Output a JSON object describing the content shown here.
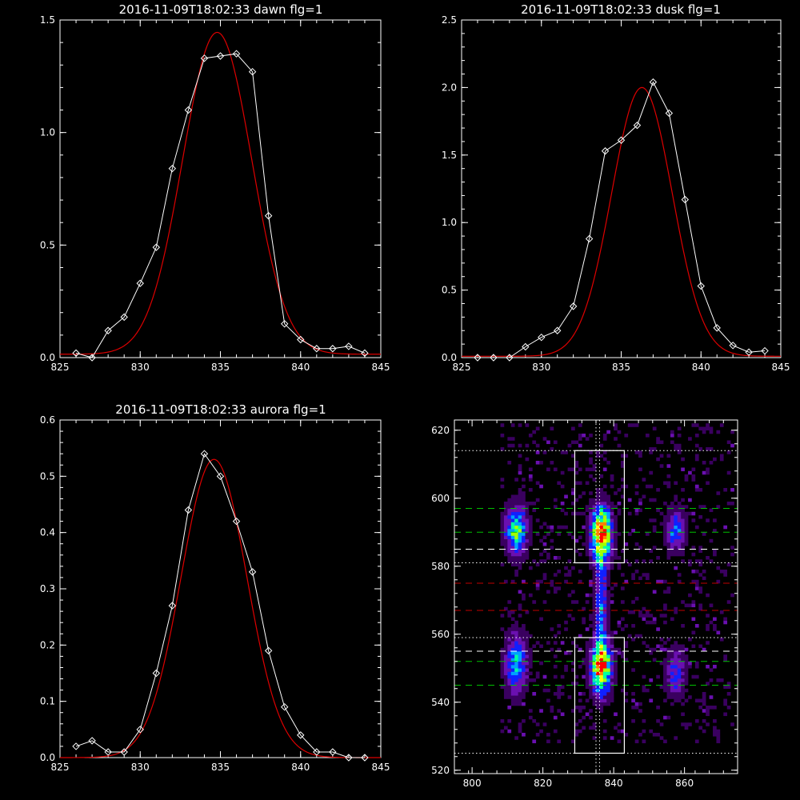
{
  "chart_data": [
    {
      "id": "dawn",
      "type": "line",
      "title": "2016-11-09T18:02:33 dawn flg=1",
      "xlim": [
        825,
        845
      ],
      "ylim": [
        0,
        1.5
      ],
      "xticks": [
        "825",
        "830",
        "835",
        "840",
        "845"
      ],
      "yticks": [
        "0.0",
        "0.5",
        "1.0",
        "1.5"
      ],
      "xtick_values": [
        825,
        830,
        835,
        840,
        845
      ],
      "ytick_values": [
        0,
        0.5,
        1.0,
        1.5
      ],
      "series": [
        {
          "kind": "data",
          "color": "#ffffff",
          "marker": "diamond",
          "x": [
            826,
            827,
            828,
            829,
            830,
            831,
            832,
            833,
            834,
            835,
            836,
            837,
            838,
            839,
            840,
            841,
            842,
            843,
            844
          ],
          "y": [
            0.02,
            0.0,
            0.12,
            0.18,
            0.33,
            0.49,
            0.84,
            1.1,
            1.33,
            1.34,
            1.35,
            1.27,
            0.63,
            0.15,
            0.08,
            0.04,
            0.04,
            0.05,
            0.02
          ]
        },
        {
          "kind": "fit",
          "color": "#dd0000",
          "gauss": {
            "amp": 1.43,
            "center": 834.8,
            "sigma": 2.15,
            "base": 0.015
          }
        }
      ]
    },
    {
      "id": "dusk",
      "type": "line",
      "title": "2016-11-09T18:02:33 dusk flg=1",
      "xlim": [
        825,
        845
      ],
      "ylim": [
        0,
        2.5
      ],
      "xticks": [
        "825",
        "830",
        "835",
        "840",
        "845"
      ],
      "yticks": [
        "0.0",
        "0.5",
        "1.0",
        "1.5",
        "2.0",
        "2.5"
      ],
      "xtick_values": [
        825,
        830,
        835,
        840,
        845
      ],
      "ytick_values": [
        0,
        0.5,
        1.0,
        1.5,
        2.0,
        2.5
      ],
      "series": [
        {
          "kind": "data",
          "color": "#ffffff",
          "marker": "diamond",
          "x": [
            826,
            827,
            828,
            829,
            830,
            831,
            832,
            833,
            834,
            835,
            836,
            837,
            838,
            839,
            840,
            841,
            842,
            843,
            844
          ],
          "y": [
            0.0,
            0.0,
            0.0,
            0.08,
            0.15,
            0.2,
            0.38,
            0.88,
            1.53,
            1.61,
            1.72,
            2.04,
            1.81,
            1.17,
            0.53,
            0.22,
            0.09,
            0.04,
            0.05
          ]
        },
        {
          "kind": "fit",
          "color": "#dd0000",
          "gauss": {
            "amp": 1.99,
            "center": 836.3,
            "sigma": 1.9,
            "base": 0.01
          }
        }
      ]
    },
    {
      "id": "aurora",
      "type": "line",
      "title": "2016-11-09T18:02:33 aurora flg=1",
      "xlim": [
        825,
        845
      ],
      "ylim": [
        0,
        0.6
      ],
      "xticks": [
        "825",
        "830",
        "835",
        "840",
        "845"
      ],
      "yticks": [
        "0.0",
        "0.1",
        "0.2",
        "0.3",
        "0.4",
        "0.5",
        "0.6"
      ],
      "xtick_values": [
        825,
        830,
        835,
        840,
        845
      ],
      "ytick_values": [
        0,
        0.1,
        0.2,
        0.3,
        0.4,
        0.5,
        0.6
      ],
      "series": [
        {
          "kind": "data",
          "color": "#ffffff",
          "marker": "diamond",
          "x": [
            826,
            827,
            828,
            829,
            830,
            831,
            832,
            833,
            834,
            835,
            836,
            837,
            838,
            839,
            840,
            841,
            842,
            843,
            844
          ],
          "y": [
            0.02,
            0.03,
            0.01,
            0.01,
            0.05,
            0.15,
            0.27,
            0.44,
            0.54,
            0.5,
            0.42,
            0.33,
            0.19,
            0.09,
            0.04,
            0.01,
            0.01,
            0.0,
            0.0
          ]
        },
        {
          "kind": "fit",
          "color": "#dd0000",
          "gauss": {
            "amp": 0.53,
            "center": 834.6,
            "sigma": 2.05,
            "base": 0.0
          }
        }
      ]
    },
    {
      "id": "image",
      "type": "heatmap",
      "title": "",
      "xlim": [
        795,
        875
      ],
      "ylim": [
        519,
        623
      ],
      "xticks": [
        "800",
        "820",
        "840",
        "860"
      ],
      "yticks": [
        "520",
        "540",
        "560",
        "580",
        "600",
        "620"
      ],
      "xtick_values": [
        800,
        820,
        840,
        860
      ],
      "ytick_values": [
        520,
        540,
        560,
        580,
        600,
        620
      ],
      "colorscale": [
        "#000000",
        "#3a0060",
        "#6a10b0",
        "#1020ff",
        "#00a0ff",
        "#00ffa0",
        "#a0ff00",
        "#ffff00",
        "#ff8000",
        "#ff0000"
      ],
      "blobs": [
        {
          "x": 812,
          "y": 590,
          "sx": 2.2,
          "sy": 5.0,
          "amp": 0.58
        },
        {
          "x": 812,
          "y": 551,
          "sx": 2.2,
          "sy": 6.0,
          "amp": 0.45
        },
        {
          "x": 836,
          "y": 589,
          "sx": 2.0,
          "sy": 5.5,
          "amp": 0.95
        },
        {
          "x": 836,
          "y": 550,
          "sx": 2.0,
          "sy": 5.5,
          "amp": 0.9
        },
        {
          "x": 836,
          "y": 569,
          "sx": 1.1,
          "sy": 9.0,
          "amp": 0.4
        },
        {
          "x": 857,
          "y": 590,
          "sx": 2.0,
          "sy": 4.0,
          "amp": 0.4
        },
        {
          "x": 857,
          "y": 548,
          "sx": 2.0,
          "sy": 5.0,
          "amp": 0.32
        }
      ],
      "boxes": [
        {
          "x0": 829,
          "x1": 843,
          "y0": 581,
          "y1": 614
        },
        {
          "x0": 829,
          "x1": 843,
          "y0": 525,
          "y1": 559
        }
      ],
      "vlines": [
        {
          "x": 835,
          "color": "#ffffff",
          "style": "dotted"
        },
        {
          "x": 836,
          "color": "#ffffff",
          "style": "dotted"
        }
      ],
      "hlines": [
        {
          "y": 614,
          "color": "#ffffff",
          "style": "dotted"
        },
        {
          "y": 597,
          "color": "#00c000",
          "style": "dashed"
        },
        {
          "y": 590,
          "color": "#00c000",
          "style": "dashed"
        },
        {
          "y": 585,
          "color": "#ffffff",
          "style": "dashed"
        },
        {
          "y": 581,
          "color": "#ffffff",
          "style": "dotted"
        },
        {
          "y": 575,
          "color": "#c00000",
          "style": "dashed"
        },
        {
          "y": 567,
          "color": "#c00000",
          "style": "dashed"
        },
        {
          "y": 559,
          "color": "#ffffff",
          "style": "dotted"
        },
        {
          "y": 555,
          "color": "#ffffff",
          "style": "dashed"
        },
        {
          "y": 552,
          "color": "#00c000",
          "style": "dashed"
        },
        {
          "y": 545,
          "color": "#00c000",
          "style": "dashed"
        },
        {
          "y": 525,
          "color": "#ffffff",
          "style": "dotted"
        }
      ]
    }
  ]
}
